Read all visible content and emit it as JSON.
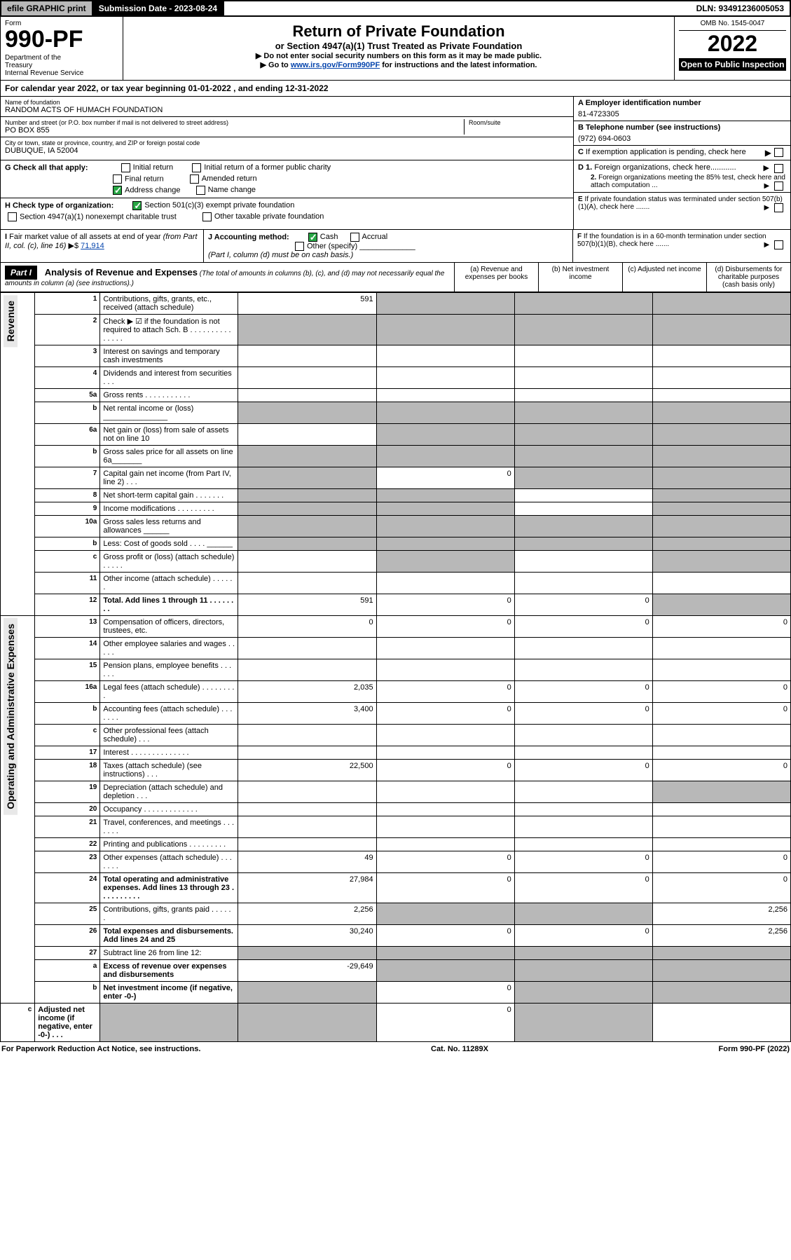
{
  "topbar": {
    "efile": "efile GRAPHIC print",
    "submission": "Submission Date - 2023-08-24",
    "dln": "DLN: 93491236005053"
  },
  "header": {
    "form_label": "Form",
    "form_num": "990-PF",
    "dept": "Department of the Treasury\nInternal Revenue Service",
    "title": "Return of Private Foundation",
    "sub1": "or Section 4947(a)(1) Trust Treated as Private Foundation",
    "sub2": "▶ Do not enter social security numbers on this form as it may be made public.",
    "sub3_a": "▶ Go to ",
    "sub3_link": "www.irs.gov/Form990PF",
    "sub3_b": " for instructions and the latest information.",
    "omb": "OMB No. 1545-0047",
    "year": "2022",
    "open": "Open to Public Inspection"
  },
  "cal_year": "For calendar year 2022, or tax year beginning 01-01-2022                          , and ending 12-31-2022",
  "id": {
    "name_label": "Name of foundation",
    "name": "RANDOM ACTS OF HUMACH FOUNDATION",
    "addr_label": "Number and street (or P.O. box number if mail is not delivered to street address)",
    "addr": "PO BOX 855",
    "room_label": "Room/suite",
    "city_label": "City or town, state or province, country, and ZIP or foreign postal code",
    "city": "DUBUQUE, IA  52004",
    "ein_label": "A Employer identification number",
    "ein": "81-4723305",
    "tel_label": "B Telephone number (see instructions)",
    "tel": "(972) 694-0603",
    "c_label": "C If exemption application is pending, check here"
  },
  "g": {
    "label": "G Check all that apply:",
    "opts": [
      "Initial return",
      "Initial return of a former public charity",
      "Final return",
      "Amended return",
      "Address change",
      "Name change"
    ],
    "d1": "D 1. Foreign organizations, check here............",
    "d2": "2. Foreign organizations meeting the 85% test, check here and attach computation ...",
    "e": "E  If private foundation status was terminated under section 507(b)(1)(A), check here .......",
    "f": "F  If the foundation is in a 60-month termination under section 507(b)(1)(B), check here ......."
  },
  "h": {
    "label": "H Check type of organization:",
    "opts": [
      "Section 501(c)(3) exempt private foundation",
      "Section 4947(a)(1) nonexempt charitable trust",
      "Other taxable private foundation"
    ]
  },
  "i": {
    "label": "I Fair market value of all assets at end of year (from Part II, col. (c), line 16) ▶$",
    "val": "71,914",
    "j_label": "J Accounting method:",
    "j_opts": [
      "Cash",
      "Accrual"
    ],
    "j_other": "Other (specify)",
    "j_note": "(Part I, column (d) must be on cash basis.)"
  },
  "part1": {
    "label": "Part I",
    "title": "Analysis of Revenue and Expenses",
    "note": "(The total of amounts in columns (b), (c), and (d) may not necessarily equal the amounts in column (a) (see instructions).)",
    "cols": [
      "(a)  Revenue and expenses per books",
      "(b)  Net investment income",
      "(c)  Adjusted net income",
      "(d)  Disbursements for charitable purposes (cash basis only)"
    ]
  },
  "sides": {
    "rev": "Revenue",
    "exp": "Operating and Administrative Expenses"
  },
  "rows": [
    {
      "n": "1",
      "d": "Contributions, gifts, grants, etc., received (attach schedule)",
      "a": "591",
      "gray_bcd": true
    },
    {
      "n": "2",
      "d": "Check ▶ ☑ if the foundation is not required to attach Sch. B      .  .  .  .  .  .  .  .  .  .  .  .  .  .  .",
      "allgray": true
    },
    {
      "n": "3",
      "d": "Interest on savings and temporary cash investments"
    },
    {
      "n": "4",
      "d": "Dividends and interest from securities       .   .   ."
    },
    {
      "n": "5a",
      "d": "Gross rents       .   .   .   .   .   .   .   .   .   .   ."
    },
    {
      "n": "b",
      "d": "Net rental income or (loss)  _______________",
      "gray_all": true
    },
    {
      "n": "6a",
      "d": "Net gain or (loss) from sale of assets not on line 10",
      "gray_bcd": true
    },
    {
      "n": "b",
      "d": "Gross sales price for all assets on line 6a_______",
      "gray_all": true
    },
    {
      "n": "7",
      "d": "Capital gain net income (from Part IV, line 2)    .   .   .",
      "gray_a": true,
      "gray_cd": true,
      "b": "0"
    },
    {
      "n": "8",
      "d": "Net short-term capital gain   .   .   .   .   .   .   .",
      "gray_abd": true
    },
    {
      "n": "9",
      "d": "Income modifications   .   .   .   .   .   .   .   .   .",
      "gray_abd": true
    },
    {
      "n": "10a",
      "d": "Gross sales less returns and allowances  ______",
      "gray_all": true
    },
    {
      "n": "b",
      "d": "Less: Cost of goods sold      .   .   .   .  ______",
      "gray_all": true
    },
    {
      "n": "c",
      "d": "Gross profit or (loss) (attach schedule)       .   .   .   .   .",
      "gray_bd": true
    },
    {
      "n": "11",
      "d": "Other income (attach schedule)     .   .   .   .   .   ."
    },
    {
      "n": "12",
      "d": "Total. Add lines 1 through 11    .   .   .   .   .   .   .   .",
      "bold": true,
      "a": "591",
      "b": "0",
      "c": "0",
      "gray_d": true
    },
    {
      "n": "13",
      "d": "Compensation of officers, directors, trustees, etc.",
      "a": "0",
      "b": "0",
      "c": "0",
      "dd": "0"
    },
    {
      "n": "14",
      "d": "Other employee salaries and wages    .   .   .   .   ."
    },
    {
      "n": "15",
      "d": "Pension plans, employee benefits   .   .   .   .   .   ."
    },
    {
      "n": "16a",
      "d": "Legal fees (attach schedule)  .   .   .   .   .   .   .   .   .",
      "a": "2,035",
      "b": "0",
      "c": "0",
      "dd": "0"
    },
    {
      "n": "b",
      "d": "Accounting fees (attach schedule)  .   .   .   .   .   .   .",
      "a": "3,400",
      "b": "0",
      "c": "0",
      "dd": "0"
    },
    {
      "n": "c",
      "d": "Other professional fees (attach schedule)      .   .   ."
    },
    {
      "n": "17",
      "d": "Interest  .   .   .   .   .   .   .   .   .   .   .   .   .   ."
    },
    {
      "n": "18",
      "d": "Taxes (attach schedule) (see instructions)         .   .   .",
      "a": "22,500",
      "b": "0",
      "c": "0",
      "dd": "0"
    },
    {
      "n": "19",
      "d": "Depreciation (attach schedule) and depletion     .   .   .",
      "gray_d": true
    },
    {
      "n": "20",
      "d": "Occupancy  .   .   .   .   .   .   .   .   .   .   .   .   ."
    },
    {
      "n": "21",
      "d": "Travel, conferences, and meetings  .   .   .   .   .   .   ."
    },
    {
      "n": "22",
      "d": "Printing and publications  .   .   .   .   .   .   .   .   ."
    },
    {
      "n": "23",
      "d": "Other expenses (attach schedule)  .   .   .   .   .   .   .",
      "a": "49",
      "b": "0",
      "c": "0",
      "dd": "0"
    },
    {
      "n": "24",
      "d": "Total operating and administrative expenses. Add lines 13 through 23    .   .   .   .   .   .   .   .   .   .",
      "bold": true,
      "a": "27,984",
      "b": "0",
      "c": "0",
      "dd": "0"
    },
    {
      "n": "25",
      "d": "Contributions, gifts, grants paid      .   .   .   .   .   .",
      "a": "2,256",
      "gray_bc": true,
      "dd": "2,256"
    },
    {
      "n": "26",
      "d": "Total expenses and disbursements. Add lines 24 and 25",
      "bold": true,
      "a": "30,240",
      "b": "0",
      "c": "0",
      "dd": "2,256"
    },
    {
      "n": "27",
      "d": "Subtract line 26 from line 12:",
      "gray_all": true
    },
    {
      "n": "a",
      "d": "Excess of revenue over expenses and disbursements",
      "bold": true,
      "a": "-29,649",
      "gray_bcd": true
    },
    {
      "n": "b",
      "d": "Net investment income (if negative, enter -0-)",
      "bold": true,
      "gray_a": true,
      "b": "0",
      "gray_cd": true
    },
    {
      "n": "c",
      "d": "Adjusted net income (if negative, enter -0-)    .   .   .",
      "bold": true,
      "gray_ab": true,
      "c": "0",
      "gray_d": true
    }
  ],
  "footer": {
    "left": "For Paperwork Reduction Act Notice, see instructions.",
    "mid": "Cat. No. 11289X",
    "right": "Form 990-PF (2022)"
  },
  "colors": {
    "gray": "#b8b8b8",
    "link": "#0645ad",
    "check": "#28a745"
  }
}
